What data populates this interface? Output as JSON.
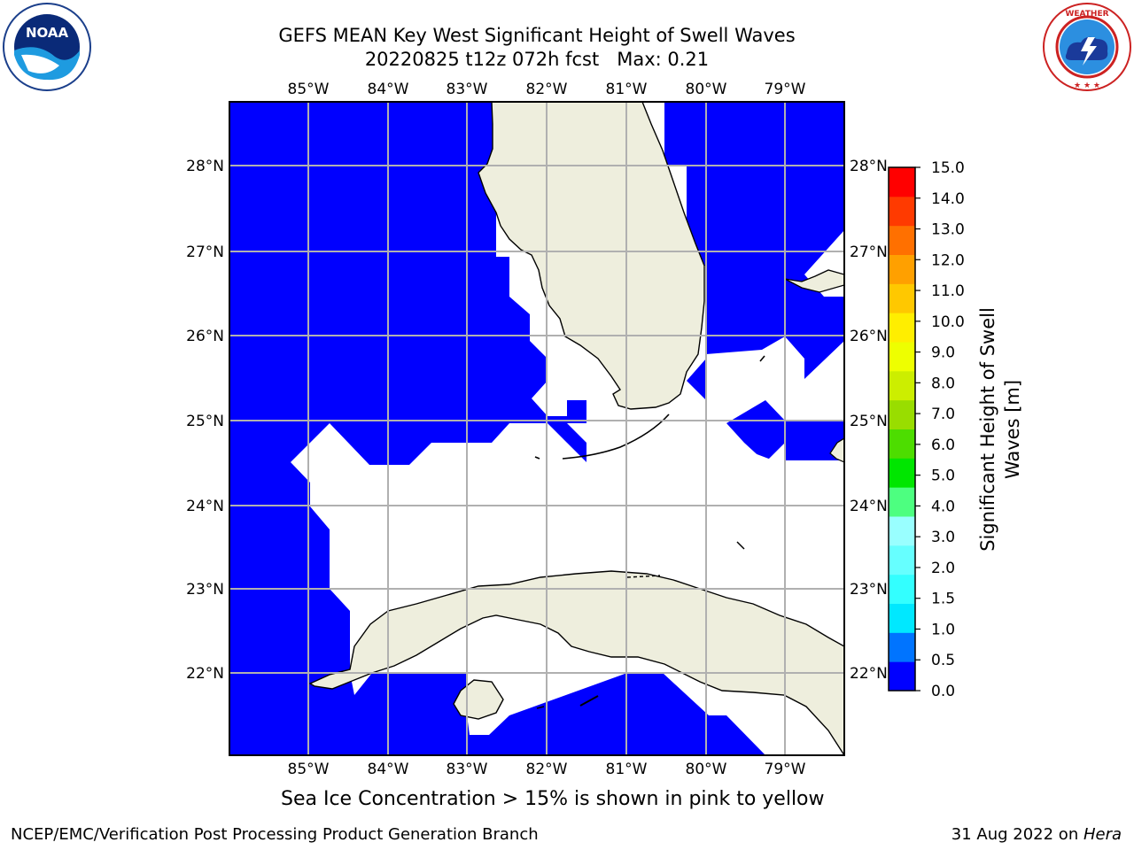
{
  "header": {
    "title_line1": "GEFS MEAN Key West Significant Height of Swell Waves",
    "title_line2": "20220825 t12z 072h fcst   Max: 0.21"
  },
  "logos": {
    "left": {
      "name": "NOAA",
      "ring_text": "NATIONAL OCEANIC AND ATMOSPHERIC ADMINISTRATION · U.S. DEPARTMENT OF COMMERCE"
    },
    "right": {
      "ring_text": "NATIONAL WEATHER SERVICE"
    }
  },
  "map": {
    "longitude_labels": [
      "85°W",
      "84°W",
      "83°W",
      "82°W",
      "81°W",
      "80°W",
      "79°W"
    ],
    "latitude_labels": [
      "28°N",
      "27°N",
      "26°N",
      "25°N",
      "24°N",
      "23°N",
      "22°N"
    ],
    "colors": {
      "water_field": "#0000ff",
      "land": "#eeeedd",
      "grid": "#b0b0b0",
      "missing": "#ffffff"
    }
  },
  "colorbar": {
    "label_line1": "Significant Height of Swell",
    "label_line2": "Waves [m]",
    "ticks": [
      "0.0",
      "0.5",
      "1.0",
      "1.5",
      "2.0",
      "3.0",
      "4.0",
      "5.0",
      "6.0",
      "7.0",
      "8.0",
      "9.0",
      "10.0",
      "11.0",
      "12.0",
      "13.0",
      "14.0",
      "15.0"
    ],
    "colors": [
      "#0000ff",
      "#0074ff",
      "#00e8ff",
      "#33ffff",
      "#66ffff",
      "#99ffff",
      "#4dff80",
      "#00e600",
      "#4ddd00",
      "#99dd00",
      "#ccee00",
      "#eeff00",
      "#ffee00",
      "#ffc800",
      "#ffa000",
      "#ff7000",
      "#ff3a00",
      "#ff0000"
    ]
  },
  "footer": {
    "note": "Sea Ice Concentration > 15% is shown in pink to yellow",
    "left": "NCEP/EMC/Verification Post Processing Product Generation Branch",
    "right_date": "31 Aug 2022 on ",
    "right_machine": "Hera"
  }
}
